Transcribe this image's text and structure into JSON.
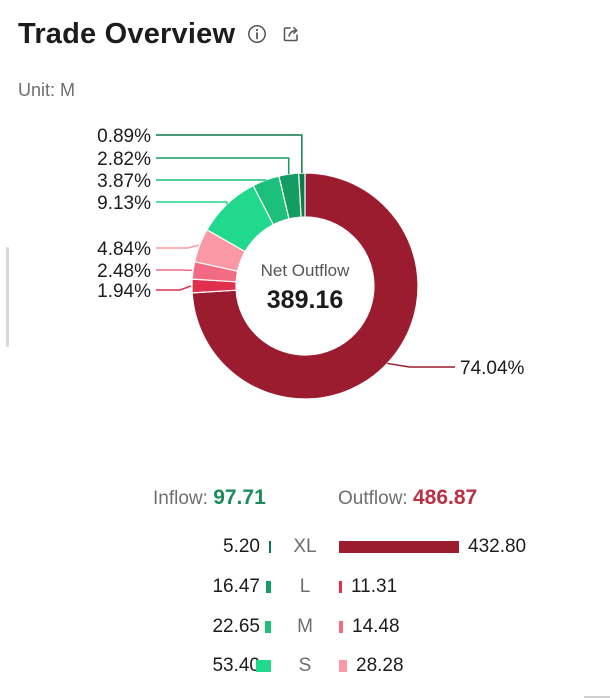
{
  "header": {
    "title": "Trade Overview",
    "info_icon": "info-icon",
    "share_icon": "share-icon"
  },
  "unit": "Unit: M",
  "chart_data": {
    "type": "pie",
    "center_label": "Net Outflow",
    "center_value": "389.16",
    "slices": [
      {
        "label": "74.04%",
        "value": 74.04,
        "color": "#9b1c2e",
        "side": "outflow",
        "size": "XL"
      },
      {
        "label": "1.94%",
        "value": 1.94,
        "color": "#e0304e",
        "side": "outflow",
        "size": "L"
      },
      {
        "label": "2.48%",
        "value": 2.48,
        "color": "#f26b82",
        "side": "outflow",
        "size": "M"
      },
      {
        "label": "4.84%",
        "value": 4.84,
        "color": "#fb98a6",
        "side": "outflow",
        "size": "S"
      },
      {
        "label": "9.13%",
        "value": 9.13,
        "color": "#21d98d",
        "side": "inflow",
        "size": "S"
      },
      {
        "label": "3.87%",
        "value": 3.87,
        "color": "#1cbf7b",
        "side": "inflow",
        "size": "M"
      },
      {
        "label": "2.82%",
        "value": 2.82,
        "color": "#139d62",
        "side": "inflow",
        "size": "L"
      },
      {
        "label": "0.89%",
        "value": 0.89,
        "color": "#0d7a4c",
        "side": "inflow",
        "size": "XL"
      }
    ]
  },
  "summary": {
    "inflow_label": "Inflow:",
    "inflow_value": "97.71",
    "outflow_label": "Outflow:",
    "outflow_value": "486.87"
  },
  "breakdown": [
    {
      "size": "XL",
      "inflow": "5.20",
      "inflow_num": 5.2,
      "outflow": "432.80",
      "outflow_num": 432.8,
      "in_color": "#0d7a4c",
      "out_color": "#9b1c2e"
    },
    {
      "size": "L",
      "inflow": "16.47",
      "inflow_num": 16.47,
      "outflow": "11.31",
      "outflow_num": 11.31,
      "in_color": "#139d62",
      "out_color": "#e0304e"
    },
    {
      "size": "M",
      "inflow": "22.65",
      "inflow_num": 22.65,
      "outflow": "14.48",
      "outflow_num": 14.48,
      "in_color": "#1cbf7b",
      "out_color": "#f26b82"
    },
    {
      "size": "S",
      "inflow": "53.40",
      "inflow_num": 53.4,
      "outflow": "28.28",
      "outflow_num": 28.28,
      "in_color": "#21d98d",
      "out_color": "#fb98a6"
    }
  ]
}
